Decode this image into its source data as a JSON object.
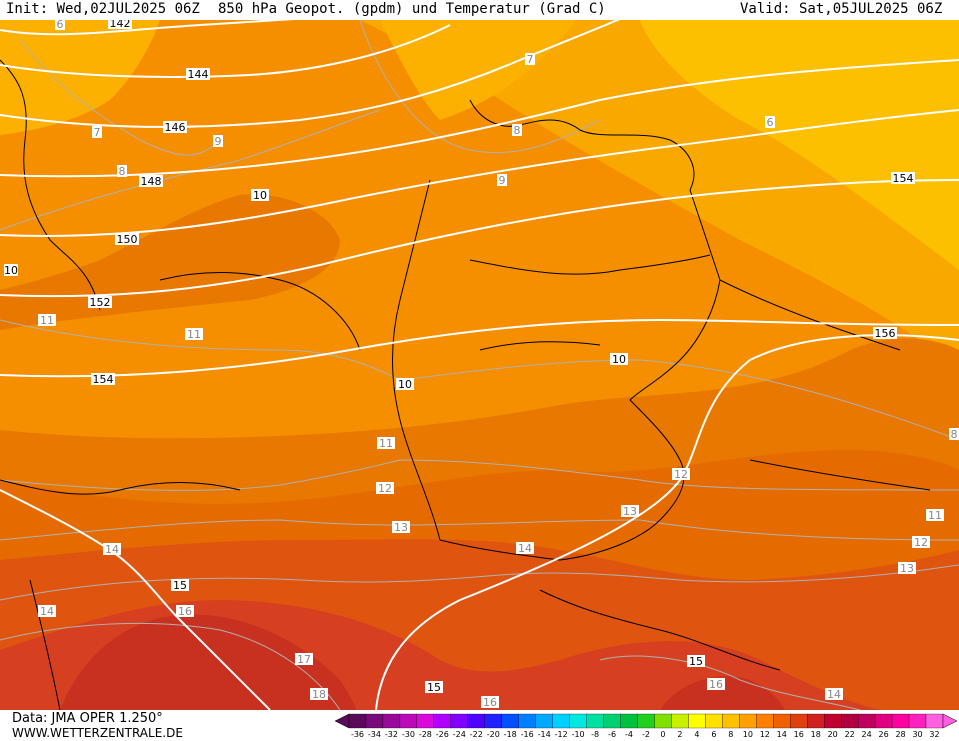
{
  "header": {
    "init": "Init: Wed,02JUL2025 06Z",
    "title": "850 hPa Geopot. (gpdm) und Temperatur (Grad C)",
    "valid": "Valid: Sat,05JUL2025 06Z"
  },
  "footer": {
    "data_source": "Data: JMA OPER 1.250°",
    "website": "WWW.WETTERZENTRALE.DE"
  },
  "color_scale": {
    "labels": [
      "-36",
      "-34",
      "-32",
      "-30",
      "-28",
      "-26",
      "-24",
      "-22",
      "-20",
      "-18",
      "-16",
      "-14",
      "-12",
      "-10",
      "-8",
      "-6",
      "-4",
      "-2",
      "0",
      "2",
      "4",
      "6",
      "8",
      "10",
      "12",
      "14",
      "16",
      "18",
      "20",
      "22",
      "24",
      "26",
      "28",
      "30",
      "32"
    ],
    "colors": [
      "#5a0a5a",
      "#7a0a7a",
      "#9a0a9a",
      "#ba0aba",
      "#da0ada",
      "#b000ff",
      "#8000ff",
      "#5000ff",
      "#2020ff",
      "#0050ff",
      "#0080ff",
      "#00a8ff",
      "#00d0ff",
      "#00e8e0",
      "#00e0a0",
      "#00d070",
      "#00c040",
      "#20d020",
      "#80e000",
      "#c8f000",
      "#ffff00",
      "#ffe000",
      "#ffc000",
      "#ffa000",
      "#ff8000",
      "#f06000",
      "#e04010",
      "#d02020",
      "#c00030",
      "#b00040",
      "#c00060",
      "#e00080",
      "#ff00a0",
      "#ff20c0",
      "#ff60e0"
    ]
  },
  "geopotential_labels": [
    "142",
    "144",
    "146",
    "148",
    "150",
    "152",
    "154",
    "154",
    "156",
    "10",
    "10"
  ],
  "temperature_labels": [
    "6",
    "7",
    "7",
    "8",
    "8",
    "9",
    "9",
    "10",
    "10",
    "11",
    "11",
    "11",
    "12",
    "12",
    "13",
    "13",
    "14",
    "14",
    "15",
    "15",
    "15",
    "16",
    "16",
    "17",
    "18",
    "16",
    "14",
    "6",
    "8",
    "11",
    "12",
    "13",
    "14"
  ],
  "colors": {
    "t6": "#fcc000",
    "t8": "#f9a800",
    "t10": "#f58f00",
    "t11": "#e87800",
    "t12": "#e56b00",
    "t13": "#df5510",
    "t15": "#d64020",
    "t17": "#c83020",
    "isohypse": "#ffffff",
    "isotherm": "#b0b0b0",
    "border": "#000000"
  }
}
